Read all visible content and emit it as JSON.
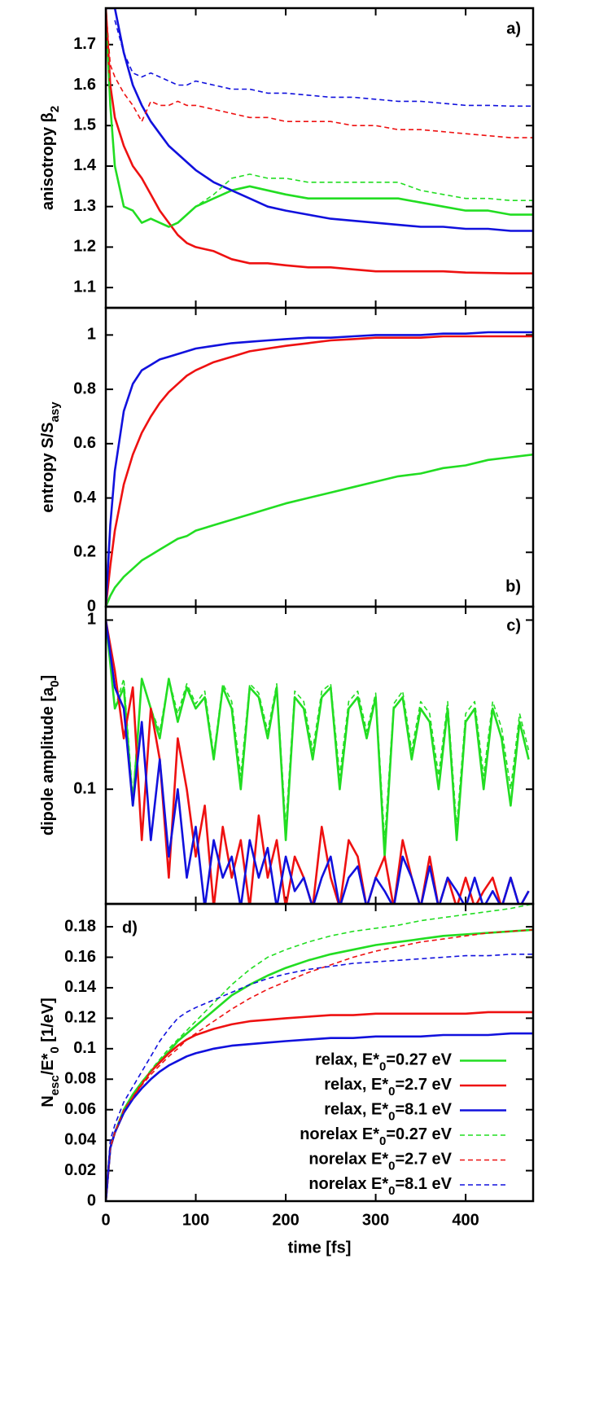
{
  "chart_data": [
    {
      "type": "line",
      "panel_label": "a)",
      "ylabel": [
        "anisotropy β",
        "2"
      ],
      "x": [
        0,
        5,
        10,
        20,
        30,
        40,
        50,
        60,
        70,
        80,
        90,
        100,
        120,
        140,
        160,
        180,
        200,
        225,
        250,
        275,
        300,
        325,
        350,
        375,
        400,
        425,
        450,
        475
      ],
      "xlim": [
        0,
        475
      ],
      "ylim": [
        1.05,
        1.79
      ],
      "yticks": [
        1.1,
        1.2,
        1.3,
        1.4,
        1.5,
        1.6,
        1.7
      ],
      "series": [
        {
          "color": "#22dd22",
          "dashed": false,
          "values": [
            1.79,
            1.55,
            1.4,
            1.3,
            1.29,
            1.26,
            1.27,
            1.26,
            1.25,
            1.26,
            1.28,
            1.3,
            1.32,
            1.34,
            1.35,
            1.34,
            1.33,
            1.32,
            1.32,
            1.32,
            1.32,
            1.32,
            1.31,
            1.3,
            1.29,
            1.29,
            1.28,
            1.28
          ]
        },
        {
          "color": "#ee1111",
          "dashed": false,
          "values": [
            1.79,
            1.6,
            1.52,
            1.45,
            1.4,
            1.37,
            1.33,
            1.29,
            1.26,
            1.23,
            1.21,
            1.2,
            1.19,
            1.17,
            1.16,
            1.16,
            1.155,
            1.15,
            1.15,
            1.145,
            1.14,
            1.14,
            1.14,
            1.14,
            1.137,
            1.136,
            1.135,
            1.135
          ]
        },
        {
          "color": "#1111dd",
          "dashed": false,
          "values": [
            1.79,
            1.79,
            1.79,
            1.68,
            1.6,
            1.55,
            1.51,
            1.48,
            1.45,
            1.43,
            1.41,
            1.39,
            1.36,
            1.34,
            1.32,
            1.3,
            1.29,
            1.28,
            1.27,
            1.265,
            1.26,
            1.255,
            1.25,
            1.25,
            1.245,
            1.245,
            1.24,
            1.24
          ]
        },
        {
          "color": "#22dd22",
          "dashed": true,
          "values": [
            1.79,
            1.55,
            1.4,
            1.3,
            1.29,
            1.26,
            1.27,
            1.26,
            1.25,
            1.26,
            1.28,
            1.3,
            1.33,
            1.37,
            1.38,
            1.37,
            1.37,
            1.36,
            1.36,
            1.36,
            1.36,
            1.36,
            1.34,
            1.33,
            1.32,
            1.32,
            1.315,
            1.315
          ]
        },
        {
          "color": "#ee1111",
          "dashed": true,
          "values": [
            1.79,
            1.65,
            1.62,
            1.58,
            1.55,
            1.51,
            1.56,
            1.55,
            1.55,
            1.56,
            1.55,
            1.55,
            1.54,
            1.53,
            1.52,
            1.52,
            1.51,
            1.51,
            1.51,
            1.5,
            1.5,
            1.49,
            1.49,
            1.485,
            1.48,
            1.475,
            1.47,
            1.47
          ]
        },
        {
          "color": "#1111dd",
          "dashed": true,
          "values": [
            null,
            null,
            1.76,
            1.68,
            1.63,
            1.62,
            1.63,
            1.62,
            1.61,
            1.6,
            1.6,
            1.61,
            1.6,
            1.59,
            1.59,
            1.58,
            1.58,
            1.575,
            1.57,
            1.57,
            1.565,
            1.56,
            1.56,
            1.555,
            1.55,
            1.55,
            1.548,
            1.548
          ]
        }
      ]
    },
    {
      "type": "line",
      "panel_label": "b)",
      "ylabel": [
        "entropy S/S",
        "asy"
      ],
      "x": [
        0,
        5,
        10,
        20,
        30,
        40,
        50,
        60,
        70,
        80,
        90,
        100,
        120,
        140,
        160,
        180,
        200,
        225,
        250,
        275,
        300,
        325,
        350,
        375,
        400,
        425,
        450,
        475
      ],
      "xlim": [
        0,
        475
      ],
      "ylim": [
        0,
        1.1
      ],
      "yticks": [
        0,
        0.2,
        0.4,
        0.6,
        0.8,
        1
      ],
      "series": [
        {
          "color": "#22dd22",
          "dashed": false,
          "values": [
            0,
            0.04,
            0.07,
            0.11,
            0.14,
            0.17,
            0.19,
            0.21,
            0.23,
            0.25,
            0.26,
            0.28,
            0.3,
            0.32,
            0.34,
            0.36,
            0.38,
            0.4,
            0.42,
            0.44,
            0.46,
            0.48,
            0.49,
            0.51,
            0.52,
            0.54,
            0.55,
            0.56
          ]
        },
        {
          "color": "#ee1111",
          "dashed": false,
          "values": [
            0,
            0.15,
            0.28,
            0.45,
            0.56,
            0.64,
            0.7,
            0.75,
            0.79,
            0.82,
            0.85,
            0.87,
            0.9,
            0.92,
            0.94,
            0.95,
            0.96,
            0.97,
            0.98,
            0.985,
            0.99,
            0.99,
            0.99,
            0.995,
            0.995,
            0.995,
            0.995,
            0.995
          ]
        },
        {
          "color": "#1111dd",
          "dashed": false,
          "values": [
            0,
            0.3,
            0.5,
            0.72,
            0.82,
            0.87,
            0.89,
            0.91,
            0.92,
            0.93,
            0.94,
            0.95,
            0.96,
            0.97,
            0.975,
            0.98,
            0.985,
            0.99,
            0.99,
            0.995,
            1.0,
            1.0,
            1.0,
            1.005,
            1.005,
            1.01,
            1.01,
            1.01
          ]
        }
      ]
    },
    {
      "type": "line",
      "panel_label": "c)",
      "ylabel": [
        "dipole amplitude [a",
        "0",
        "]"
      ],
      "log": true,
      "x": [
        0,
        10,
        20,
        30,
        40,
        50,
        60,
        70,
        80,
        90,
        100,
        110,
        120,
        130,
        140,
        150,
        160,
        170,
        180,
        190,
        200,
        210,
        220,
        230,
        240,
        250,
        260,
        270,
        280,
        290,
        300,
        310,
        320,
        330,
        340,
        350,
        360,
        370,
        380,
        390,
        400,
        410,
        420,
        430,
        440,
        450,
        460,
        470
      ],
      "xlim": [
        0,
        475
      ],
      "ylim": [
        0.021,
        1.2
      ],
      "yticks": [
        0.1,
        1
      ],
      "series": [
        {
          "color": "#22dd22",
          "dashed": true,
          "values": [
            1,
            0.3,
            0.45,
            0.09,
            0.45,
            0.3,
            0.22,
            0.45,
            0.28,
            0.42,
            0.32,
            0.38,
            0.16,
            0.42,
            0.33,
            0.12,
            0.42,
            0.37,
            0.22,
            0.42,
            0.06,
            0.38,
            0.33,
            0.17,
            0.38,
            0.42,
            0.12,
            0.33,
            0.38,
            0.22,
            0.37,
            0.05,
            0.32,
            0.38,
            0.17,
            0.33,
            0.28,
            0.12,
            0.33,
            0.06,
            0.28,
            0.33,
            0.12,
            0.33,
            0.23,
            0.1,
            0.28,
            0.17
          ]
        },
        {
          "color": "#22dd22",
          "dashed": false,
          "values": [
            1,
            0.3,
            0.4,
            0.08,
            0.45,
            0.3,
            0.2,
            0.45,
            0.25,
            0.4,
            0.3,
            0.35,
            0.15,
            0.4,
            0.3,
            0.1,
            0.4,
            0.35,
            0.2,
            0.4,
            0.05,
            0.35,
            0.3,
            0.15,
            0.35,
            0.4,
            0.1,
            0.3,
            0.35,
            0.2,
            0.35,
            0.04,
            0.3,
            0.35,
            0.15,
            0.3,
            0.25,
            0.1,
            0.3,
            0.05,
            0.25,
            0.3,
            0.1,
            0.3,
            0.2,
            0.08,
            0.25,
            0.15
          ]
        },
        {
          "color": "#ee1111",
          "dashed": false,
          "values": [
            1,
            0.5,
            0.2,
            0.4,
            0.05,
            0.3,
            0.15,
            0.03,
            0.2,
            0.1,
            0.04,
            0.08,
            0.02,
            0.06,
            0.03,
            0.05,
            0.02,
            0.07,
            0.03,
            0.05,
            0.02,
            0.04,
            0.03,
            0.02,
            0.06,
            0.03,
            0.02,
            0.05,
            0.04,
            0.02,
            0.03,
            0.04,
            0.02,
            0.05,
            0.03,
            0.02,
            0.04,
            0.02,
            0.03,
            0.02,
            0.03,
            0.02,
            0.025,
            0.03,
            0.02,
            0.03,
            0.02,
            0.025
          ]
        },
        {
          "color": "#1111dd",
          "dashed": false,
          "values": [
            1,
            0.4,
            0.3,
            0.08,
            0.25,
            0.05,
            0.15,
            0.04,
            0.1,
            0.03,
            0.06,
            0.02,
            0.05,
            0.03,
            0.04,
            0.02,
            0.05,
            0.03,
            0.045,
            0.02,
            0.04,
            0.025,
            0.03,
            0.02,
            0.03,
            0.04,
            0.02,
            0.03,
            0.035,
            0.02,
            0.03,
            0.025,
            0.02,
            0.04,
            0.03,
            0.02,
            0.035,
            0.02,
            0.03,
            0.025,
            0.02,
            0.03,
            0.02,
            0.025,
            0.02,
            0.03,
            0.02,
            0.025
          ]
        }
      ]
    },
    {
      "type": "line",
      "panel_label": "d)",
      "ylabel": [
        "N",
        "esc",
        "/E*",
        "0",
        "   [1/eV]"
      ],
      "xlabel": "time [fs]",
      "legend": "bottom-right",
      "x": [
        0,
        5,
        10,
        20,
        30,
        40,
        50,
        60,
        70,
        80,
        90,
        100,
        120,
        140,
        160,
        180,
        200,
        225,
        250,
        275,
        300,
        325,
        350,
        375,
        400,
        425,
        450,
        475
      ],
      "xlim": [
        0,
        475
      ],
      "xticks": [
        0,
        100,
        200,
        300,
        400
      ],
      "ylim": [
        0,
        0.195
      ],
      "yticks": [
        0,
        0.02,
        0.04,
        0.06,
        0.08,
        0.1,
        0.12,
        0.14,
        0.16,
        0.18
      ],
      "series": [
        {
          "name": [
            "relax, E*",
            "0",
            "=0.27 eV"
          ],
          "color": "#22dd22",
          "dashed": false,
          "values": [
            0,
            0.035,
            0.045,
            0.06,
            0.07,
            0.078,
            0.085,
            0.092,
            0.098,
            0.105,
            0.11,
            0.115,
            0.125,
            0.135,
            0.142,
            0.148,
            0.153,
            0.158,
            0.162,
            0.165,
            0.168,
            0.17,
            0.172,
            0.174,
            0.175,
            0.176,
            0.177,
            0.178
          ]
        },
        {
          "name": [
            "relax, E*",
            "0",
            "=2.7 eV"
          ],
          "color": "#ee1111",
          "dashed": false,
          "values": [
            0,
            0.035,
            0.045,
            0.058,
            0.068,
            0.077,
            0.085,
            0.091,
            0.097,
            0.102,
            0.106,
            0.109,
            0.113,
            0.116,
            0.118,
            0.119,
            0.12,
            0.121,
            0.122,
            0.122,
            0.123,
            0.123,
            0.123,
            0.123,
            0.123,
            0.124,
            0.124,
            0.124
          ]
        },
        {
          "name": [
            "relax, E*",
            "0",
            "=8.1 eV"
          ],
          "color": "#1111dd",
          "dashed": false,
          "values": [
            0,
            0.035,
            0.045,
            0.058,
            0.067,
            0.074,
            0.08,
            0.085,
            0.089,
            0.092,
            0.095,
            0.097,
            0.1,
            0.102,
            0.103,
            0.104,
            0.105,
            0.106,
            0.107,
            0.107,
            0.108,
            0.108,
            0.108,
            0.109,
            0.109,
            0.109,
            0.11,
            0.11
          ]
        },
        {
          "name": [
            "norelax E*",
            "0",
            "=0.27 eV"
          ],
          "color": "#22dd22",
          "dashed": true,
          "values": [
            0,
            0.035,
            0.045,
            0.06,
            0.07,
            0.078,
            0.086,
            0.093,
            0.1,
            0.106,
            0.112,
            0.118,
            0.13,
            0.142,
            0.152,
            0.16,
            0.165,
            0.17,
            0.174,
            0.177,
            0.179,
            0.181,
            0.184,
            0.186,
            0.188,
            0.19,
            0.192,
            0.195
          ]
        },
        {
          "name": [
            "norelax E*",
            "0",
            "=2.7 eV"
          ],
          "color": "#ee1111",
          "dashed": true,
          "values": [
            0,
            0.035,
            0.045,
            0.06,
            0.068,
            0.076,
            0.083,
            0.089,
            0.095,
            0.1,
            0.106,
            0.11,
            0.118,
            0.126,
            0.133,
            0.139,
            0.144,
            0.15,
            0.155,
            0.16,
            0.164,
            0.167,
            0.17,
            0.172,
            0.174,
            0.176,
            0.177,
            0.178
          ]
        },
        {
          "name": [
            "norelax E*",
            "0",
            "=8.1 eV"
          ],
          "color": "#1111dd",
          "dashed": true,
          "values": [
            0,
            0.04,
            0.05,
            0.065,
            0.075,
            0.085,
            0.095,
            0.105,
            0.113,
            0.12,
            0.124,
            0.127,
            0.132,
            0.137,
            0.142,
            0.146,
            0.149,
            0.152,
            0.154,
            0.156,
            0.157,
            0.158,
            0.159,
            0.16,
            0.161,
            0.161,
            0.162,
            0.162
          ]
        }
      ]
    }
  ]
}
